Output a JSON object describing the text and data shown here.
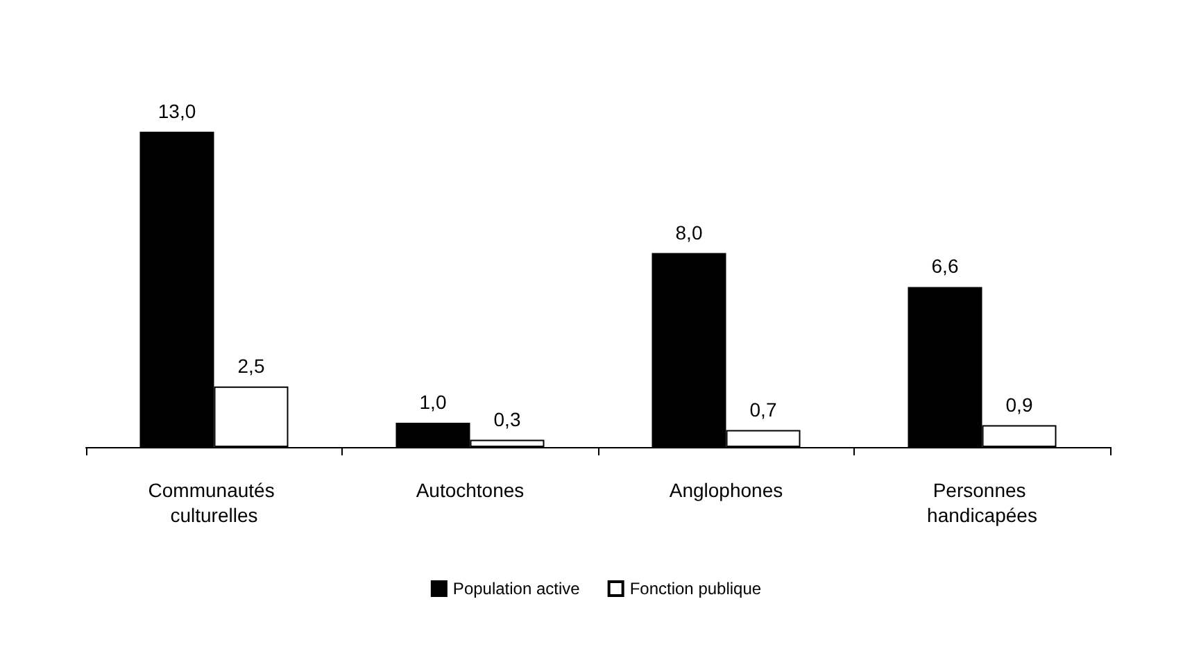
{
  "chart_data": {
    "type": "bar",
    "categories": [
      "Communautés culturelles",
      "Autochtones",
      "Anglophones",
      "Personnes handicapées"
    ],
    "series": [
      {
        "name": "Population active",
        "color": "#000000",
        "values": [
          13.0,
          1.0,
          8.0,
          6.6
        ],
        "value_labels": [
          "13,0",
          "1,0",
          "8,0",
          "6,6"
        ]
      },
      {
        "name": "Fonction publique",
        "color": "#ffffff",
        "values": [
          2.5,
          0.3,
          0.7,
          0.9
        ],
        "value_labels": [
          "2,5",
          "0,3",
          "0,7",
          "0,9"
        ]
      }
    ],
    "legend": "bottom"
  }
}
